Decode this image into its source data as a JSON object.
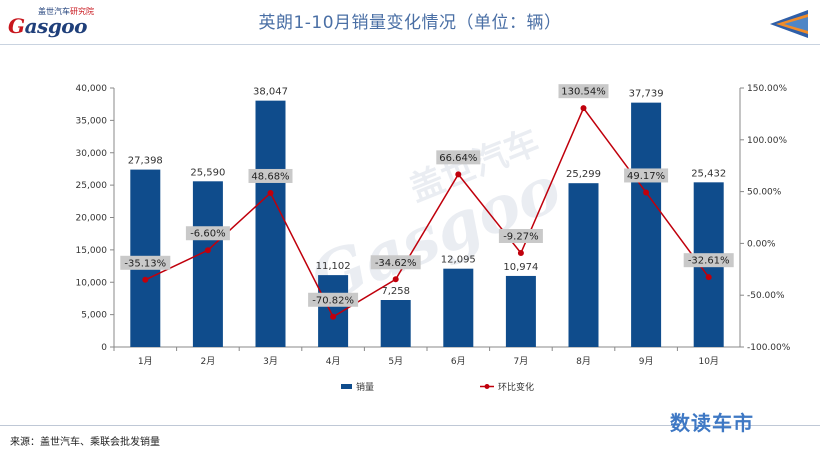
{
  "header": {
    "title": "英朗1-10月销量变化情况（单位：辆）",
    "logo_cn_a": "盖世汽车",
    "logo_cn_b": "研究院",
    "logo_en": "asgoo",
    "logo_en_g": "G",
    "back_icon": "back-arrow-icon"
  },
  "watermark": {
    "cn": "盖世汽车",
    "en": "Gasgoo"
  },
  "footer": {
    "source": "来源：盖世汽车、乘联会批发销量",
    "brand": "数读车市"
  },
  "colors": {
    "bar": "#0f4c8c",
    "line": "#c0000c",
    "title": "#4a6fa5",
    "brand": "#3e78c4",
    "accent_orange": "#f28c28"
  },
  "chart_data": {
    "type": "bar",
    "categories": [
      "1月",
      "2月",
      "3月",
      "4月",
      "5月",
      "6月",
      "7月",
      "8月",
      "9月",
      "10月"
    ],
    "series": [
      {
        "name": "销量",
        "type": "bar",
        "axis": "left",
        "values": [
          27398,
          25590,
          38047,
          11102,
          7258,
          12095,
          10974,
          25299,
          37739,
          25432
        ],
        "labels": [
          "27,398",
          "25,590",
          "38,047",
          "11,102",
          "7,258",
          "12,095",
          "10,974",
          "25,299",
          "37,739",
          "25,432"
        ]
      },
      {
        "name": "环比变化",
        "type": "line",
        "axis": "right",
        "values": [
          -35.13,
          -6.6,
          48.68,
          -70.82,
          -34.62,
          66.64,
          -9.27,
          130.54,
          49.17,
          -32.61
        ],
        "labels": [
          "-35.13%",
          "-6.60%",
          "48.68%",
          "-70.82%",
          "-34.62%",
          "66.64%",
          "-9.27%",
          "130.54%",
          "49.17%",
          "-32.61%"
        ]
      }
    ],
    "y_left": {
      "min": 0,
      "max": 40000,
      "ticks": [
        "0",
        "5,000",
        "10,000",
        "15,000",
        "20,000",
        "25,000",
        "30,000",
        "35,000",
        "40,000"
      ]
    },
    "y_right": {
      "min": -100,
      "max": 150,
      "ticks": [
        "-100.00%",
        "-50.00%",
        "0.00%",
        "50.00%",
        "100.00%",
        "150.00%"
      ]
    },
    "legend": {
      "position": "bottom",
      "items": [
        "销量",
        "环比变化"
      ]
    },
    "grid": false
  }
}
